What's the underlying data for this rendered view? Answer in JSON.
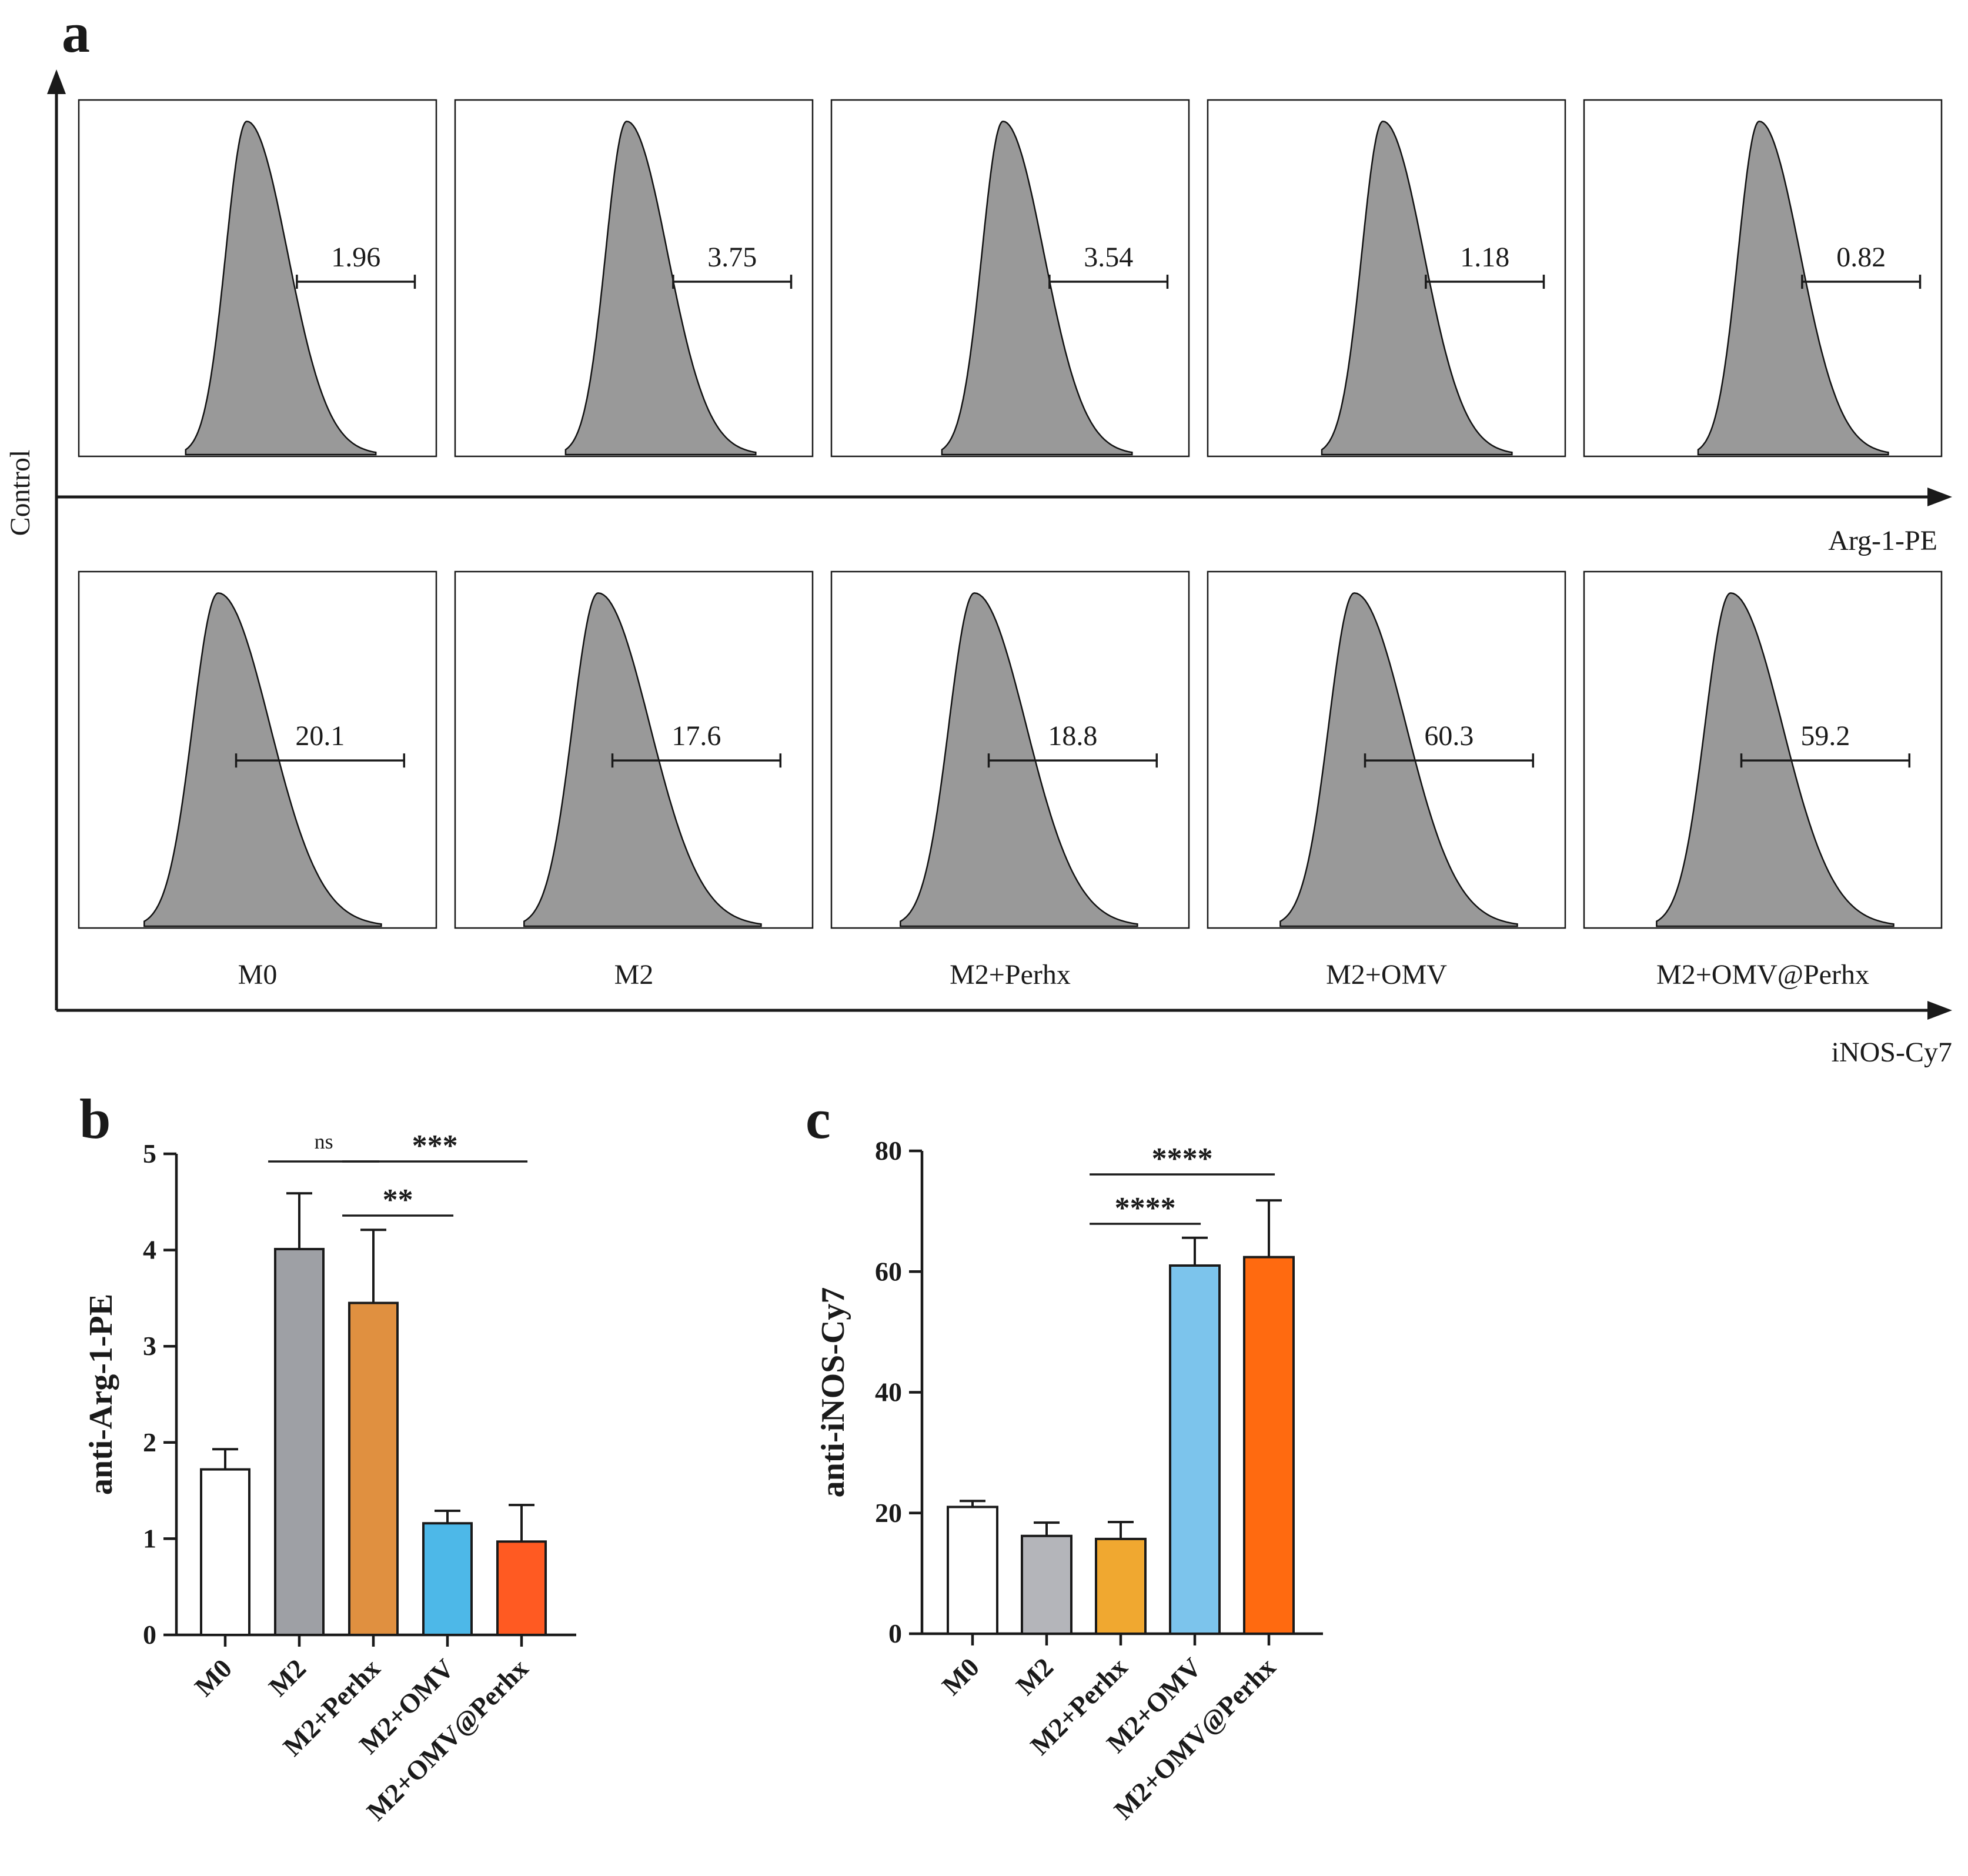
{
  "panel_labels": {
    "a": "a",
    "b": "b",
    "c": "c"
  },
  "panel_a": {
    "y_axis_label": "Control",
    "top_row_axis_label": "Arg-1-PE",
    "bottom_row_axis_label": "iNOS-Cy7",
    "groups": [
      "M0",
      "M2",
      "M2+Perhx",
      "M2+OMV",
      "M2+OMV@Perhx"
    ],
    "arg1_gate_percent": [
      "1.96",
      "3.75",
      "3.54",
      "1.18",
      "0.82"
    ],
    "inos_gate_percent": [
      "20.1",
      "17.6",
      "18.8",
      "60.3",
      "59.2"
    ]
  },
  "chart_data": [
    {
      "type": "bar",
      "panel": "b",
      "ylabel": "anti-Arg-1-PE",
      "categories": [
        "M0",
        "M2",
        "M2+Perhx",
        "M2+OMV",
        "M2+OMV@Perhx"
      ],
      "values": [
        1.72,
        4.01,
        3.45,
        1.16,
        0.97
      ],
      "errors": [
        0.21,
        0.58,
        0.76,
        0.13,
        0.38
      ],
      "colors": [
        "#ffffff",
        "#9ea0a5",
        "#e09040",
        "#4db8e8",
        "#ff5a22"
      ],
      "ylim": [
        0,
        5
      ],
      "yticks": [
        0,
        1,
        2,
        3,
        4,
        5
      ],
      "significance": [
        {
          "from": 1,
          "to": 2,
          "label": "ns"
        },
        {
          "from": 2,
          "to": 3,
          "label": "**"
        },
        {
          "from": 2,
          "to": 4,
          "label": "***"
        }
      ]
    },
    {
      "type": "bar",
      "panel": "c",
      "ylabel": "anti-iNOS-Cy7",
      "categories": [
        "M0",
        "M2",
        "M2+Perhx",
        "M2+OMV",
        "M2+OMV@Perhx"
      ],
      "values": [
        21.0,
        16.2,
        15.7,
        61.0,
        62.4
      ],
      "errors": [
        1.0,
        2.2,
        2.8,
        4.6,
        9.4
      ],
      "colors": [
        "#ffffff",
        "#b4b5ba",
        "#f0a830",
        "#7cc4ec",
        "#ff6a10"
      ],
      "ylim": [
        0,
        80
      ],
      "yticks": [
        0,
        20,
        40,
        60,
        80
      ],
      "significance": [
        {
          "from": 2,
          "to": 3,
          "label": "****"
        },
        {
          "from": 2,
          "to": 4,
          "label": "****"
        }
      ]
    }
  ]
}
